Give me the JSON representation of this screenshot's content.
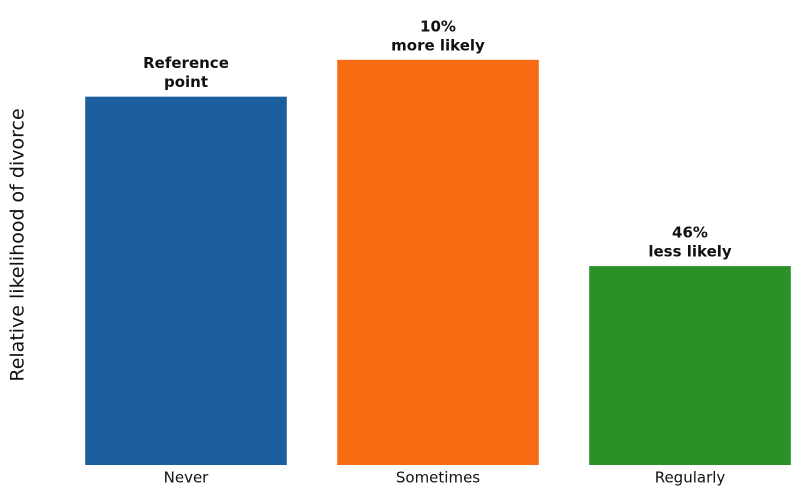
{
  "chart_data": {
    "type": "bar",
    "y_label": "Relative likelihood of divorce",
    "categories": [
      "Never",
      "Sometimes",
      "Regularly"
    ],
    "values": [
      1.0,
      1.1,
      0.54
    ],
    "colors": [
      "#1b5e9e",
      "#f96b12",
      "#2a9128"
    ],
    "annotations": [
      [
        "Reference",
        "point"
      ],
      [
        "10%",
        "more likely"
      ],
      [
        "46%",
        "less likely"
      ]
    ],
    "ylim": [
      0,
      1.2
    ],
    "grid": false
  }
}
